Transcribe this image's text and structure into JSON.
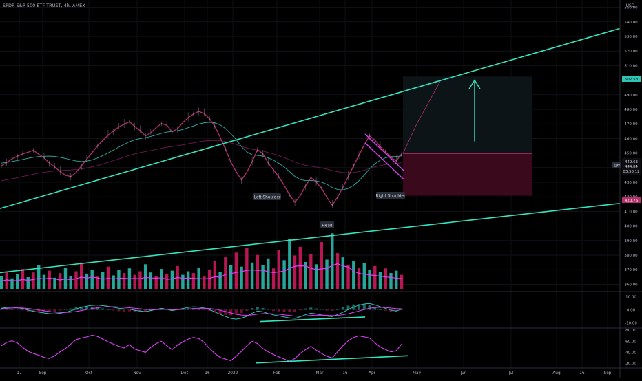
{
  "header": {
    "symbol_title": "SPDR S&P 500 ETF TRUST, 4h, AMEX",
    "currency": "USD"
  },
  "price_badges": {
    "target": "502.53",
    "last_close": "449.63",
    "last_low": "444.84",
    "countdown": "03:58:12",
    "ticker": "SPY",
    "stop": "420.75"
  },
  "annotations": {
    "left_shoulder": "Left Shoulder",
    "head": "Head",
    "right_shoulder": "Right Shoulder"
  },
  "colors": {
    "background": "#000000",
    "trendline": "#33e6c0",
    "price_line": "#b6306e",
    "target_zone": "#0d1418",
    "stop_zone": "#3a0a1c",
    "volume_up": "#2ec4b6",
    "volume_down": "#d81b60",
    "volume_ma": "#e040fb",
    "macd": "#2ec4b6",
    "signal": "#e040fb",
    "rsi": "#e040fb",
    "text": "#b2b5be"
  },
  "chart_data": [
    {
      "type": "line",
      "panel": "price",
      "title": "SPDR S&P 500 ETF TRUST, 4h, AMEX",
      "y_axis": {
        "unit": "USD",
        "range": [
          355,
          555
        ],
        "tick_labels": [
          "360.00",
          "370.00",
          "380.00",
          "390.00",
          "400.00",
          "410.00",
          "420.00",
          "430.00",
          "440.00",
          "450.00",
          "460.00",
          "470.00",
          "480.00",
          "490.00",
          "500.00",
          "510.00",
          "520.00",
          "530.00",
          "540.00",
          "550.00"
        ]
      },
      "x_axis": {
        "tick_labels": [
          "17",
          "Sep",
          "Oct",
          "Nov",
          "Dec",
          "16",
          "2022",
          "Feb",
          "Mar",
          "16",
          "Apr",
          "May",
          "Jun",
          "Jul",
          "Aug",
          "16",
          "Sep"
        ]
      },
      "series": [
        {
          "values": [
            441.2,
            443.5,
            446.1,
            447.8,
            449.4,
            450.6,
            451.9,
            449.2,
            446.8,
            443.1,
            440.5,
            437.3,
            434.8,
            433.9,
            436.7,
            441.2,
            445.8,
            450.3,
            454.9,
            458.7,
            462.4,
            465.1,
            467.9,
            469.8,
            471.5,
            468.2,
            465.4,
            461.8,
            463.9,
            467.5,
            470.2,
            469.1,
            464.5,
            466.8,
            470.9,
            474.3,
            476.8,
            478.6,
            477.1,
            473.6,
            468.4,
            460.9,
            452.7,
            443.8,
            437.2,
            431.6,
            436.9,
            444.1,
            452.3,
            449.6,
            443.1,
            438.4,
            433.7,
            427.9,
            421.4,
            416.3,
            420.8,
            427.5,
            433.2,
            430.1,
            425.8,
            419.7,
            414.2,
            419.8,
            426.4,
            433.9,
            441.2,
            448.5,
            455.6,
            461.8,
            458.9,
            454.4,
            450.8,
            447.2,
            444.6,
            449.6
          ]
        }
      ],
      "moving_averages": [
        {
          "values": [
            443.1,
            443.6,
            444.2,
            444.9,
            445.6,
            446.4,
            447.1,
            447.6,
            447.8,
            447.9,
            447.7,
            447.1,
            446.3,
            445.4,
            444.6,
            444.2,
            444.5,
            445.3,
            446.6,
            448.2,
            450.1,
            452.1,
            454.1,
            456.0,
            457.8,
            459.1,
            460.0,
            460.6,
            461.4,
            462.4,
            463.5,
            464.4,
            464.8,
            465.3,
            466.2,
            467.4,
            468.6,
            469.9,
            470.8,
            471.1,
            470.7,
            469.3,
            466.8,
            463.3,
            459.2,
            454.4,
            450.8,
            448.8,
            448.4,
            447.9,
            446.7,
            445.1,
            443.0,
            440.4,
            437.3,
            434.0,
            431.9,
            431.1,
            431.2,
            430.9,
            430.1,
            428.6,
            426.4,
            425.0,
            424.8,
            425.8,
            427.9,
            431.0,
            434.9,
            439.2,
            442.6,
            445.1,
            446.8,
            447.6,
            447.6,
            448.1
          ]
        },
        {
          "values": [
            431.0,
            431.7,
            432.4,
            433.1,
            433.9,
            434.7,
            435.5,
            436.2,
            436.8,
            437.3,
            437.7,
            438.0,
            438.2,
            438.4,
            438.7,
            439.1,
            439.7,
            440.5,
            441.4,
            442.5,
            443.6,
            444.8,
            446.0,
            447.2,
            448.4,
            449.4,
            450.3,
            451.0,
            451.7,
            452.5,
            453.3,
            454.0,
            454.5,
            455.0,
            455.6,
            456.3,
            457.0,
            457.7,
            458.3,
            458.6,
            458.7,
            458.5,
            457.9,
            457.0,
            455.9,
            454.6,
            453.5,
            452.6,
            452.0,
            451.3,
            450.4,
            449.4,
            448.2,
            446.9,
            445.4,
            443.8,
            442.5,
            441.6,
            441.0,
            440.4,
            439.8,
            439.0,
            438.0,
            437.2,
            436.7,
            436.5,
            436.7,
            437.3,
            438.2,
            439.4,
            440.5,
            441.4,
            442.1,
            442.6,
            442.9,
            443.3
          ]
        }
      ],
      "trendlines": [
        {
          "name_visible": false,
          "role": "upper channel",
          "from": {
            "t": 0.0,
            "price": 412.0
          },
          "to": {
            "t": 1.0,
            "price": 535.5
          }
        },
        {
          "name_visible": false,
          "role": "lower channel",
          "from": {
            "t": 0.0,
            "price": 368.0
          },
          "to": {
            "t": 1.0,
            "price": 415.5
          }
        }
      ],
      "target_zone": {
        "top": 502.53,
        "bottom": 449.63
      },
      "stop_zone": {
        "top": 449.63,
        "bottom": 420.75
      }
    },
    {
      "type": "bar",
      "panel": "volume",
      "values": [
        0.22,
        0.3,
        0.18,
        0.25,
        0.34,
        0.2,
        0.28,
        0.4,
        0.24,
        0.31,
        0.19,
        0.27,
        0.36,
        0.22,
        0.3,
        0.45,
        0.26,
        0.33,
        0.21,
        0.29,
        0.38,
        0.23,
        0.32,
        0.27,
        0.35,
        0.24,
        0.3,
        0.42,
        0.28,
        0.22,
        0.34,
        0.26,
        0.31,
        0.39,
        0.24,
        0.3,
        0.27,
        0.36,
        0.22,
        0.33,
        0.48,
        0.29,
        0.55,
        0.41,
        0.62,
        0.38,
        0.7,
        0.45,
        0.58,
        0.4,
        0.52,
        0.35,
        0.66,
        0.49,
        0.85,
        0.57,
        0.72,
        0.46,
        0.6,
        0.42,
        0.8,
        0.5,
        0.95,
        0.61,
        0.54,
        0.4,
        0.47,
        0.36,
        0.44,
        0.33,
        0.39,
        0.29,
        0.35,
        0.27,
        0.31,
        0.24
      ],
      "direction": [
        "u",
        "d",
        "u",
        "u",
        "d",
        "u",
        "d",
        "u",
        "u",
        "d",
        "u",
        "d",
        "u",
        "u",
        "d",
        "d",
        "u",
        "u",
        "d",
        "u",
        "d",
        "u",
        "u",
        "d",
        "u",
        "d",
        "d",
        "u",
        "u",
        "d",
        "u",
        "d",
        "u",
        "d",
        "u",
        "u",
        "d",
        "u",
        "d",
        "d",
        "d",
        "u",
        "d",
        "u",
        "d",
        "u",
        "d",
        "u",
        "d",
        "u",
        "u",
        "d",
        "d",
        "u",
        "u",
        "d",
        "d",
        "u",
        "d",
        "u",
        "d",
        "u",
        "u",
        "d",
        "u",
        "d",
        "u",
        "d",
        "u",
        "u",
        "d",
        "u",
        "d",
        "u",
        "u",
        "d"
      ]
    },
    {
      "type": "line",
      "panel": "macd",
      "y_axis": {
        "tick_labels": [
          "10.00",
          "0.00",
          "-10.00"
        ],
        "range": [
          -14,
          14
        ]
      },
      "series": [
        {
          "values": [
            1.2,
            1.8,
            2.1,
            1.6,
            0.9,
            -0.2,
            -1.1,
            -1.8,
            -2.4,
            -2.9,
            -3.1,
            -2.6,
            -1.9,
            -0.8,
            0.6,
            1.9,
            2.8,
            3.4,
            3.6,
            3.2,
            2.7,
            1.9,
            1.2,
            0.7,
            0.5,
            -0.4,
            -0.9,
            -1.4,
            -0.6,
            0.3,
            1.1,
            0.4,
            -0.6,
            0.2,
            1.0,
            1.8,
            2.3,
            2.1,
            1.4,
            0.2,
            -1.6,
            -3.4,
            -5.1,
            -6.6,
            -7.2,
            -6.4,
            -4.9,
            -2.6,
            -0.9,
            -1.5,
            -2.8,
            -3.9,
            -4.6,
            -5.4,
            -6.2,
            -6.6,
            -5.3,
            -3.7,
            -2.6,
            -3.1,
            -3.9,
            -4.8,
            -5.2,
            -3.6,
            -1.9,
            0.2,
            2.1,
            3.6,
            4.5,
            4.9,
            3.8,
            2.4,
            1.1,
            -0.3,
            -0.9,
            0.5
          ]
        },
        {
          "values": [
            0.8,
            1.1,
            1.4,
            1.5,
            1.4,
            1.0,
            0.5,
            -0.1,
            -0.7,
            -1.3,
            -1.8,
            -2.0,
            -2.0,
            -1.8,
            -1.3,
            -0.6,
            0.2,
            1.0,
            1.6,
            2.1,
            2.4,
            2.4,
            2.2,
            1.9,
            1.6,
            1.2,
            0.8,
            0.3,
            0.1,
            0.1,
            0.3,
            0.3,
            0.1,
            0.1,
            0.3,
            0.6,
            0.9,
            1.2,
            1.2,
            1.0,
            0.5,
            -0.3,
            -1.3,
            -2.4,
            -3.4,
            -4.0,
            -4.2,
            -3.9,
            -3.3,
            -2.9,
            -2.9,
            -3.1,
            -3.4,
            -3.8,
            -4.3,
            -4.8,
            -4.9,
            -4.7,
            -4.3,
            -4.1,
            -4.0,
            -4.2,
            -4.4,
            -4.3,
            -3.8,
            -3.0,
            -2.0,
            -0.9,
            0.2,
            1.2,
            1.8,
            1.9,
            1.8,
            1.3,
            0.9,
            0.8
          ]
        }
      ]
    },
    {
      "type": "line",
      "panel": "rsi",
      "y_axis": {
        "tick_labels": [
          "80.00",
          "60.00",
          "40.00",
          "20.00"
        ],
        "range": [
          12,
          84
        ]
      },
      "series": [
        {
          "values": [
            52,
            58,
            61,
            57,
            49,
            42,
            38,
            35,
            31,
            29,
            34,
            41,
            47,
            55,
            63,
            66,
            68,
            71,
            69,
            64,
            59,
            55,
            51,
            48,
            54,
            46,
            43,
            40,
            49,
            56,
            60,
            52,
            45,
            53,
            59,
            64,
            67,
            65,
            58,
            47,
            38,
            31,
            28,
            25,
            33,
            42,
            52,
            60,
            56,
            47,
            41,
            36,
            32,
            28,
            24,
            29,
            38,
            45,
            51,
            44,
            38,
            33,
            30,
            41,
            52,
            61,
            67,
            70,
            68,
            66,
            57,
            50,
            45,
            41,
            43,
            55
          ]
        }
      ],
      "levels": [
        70,
        30
      ]
    }
  ]
}
